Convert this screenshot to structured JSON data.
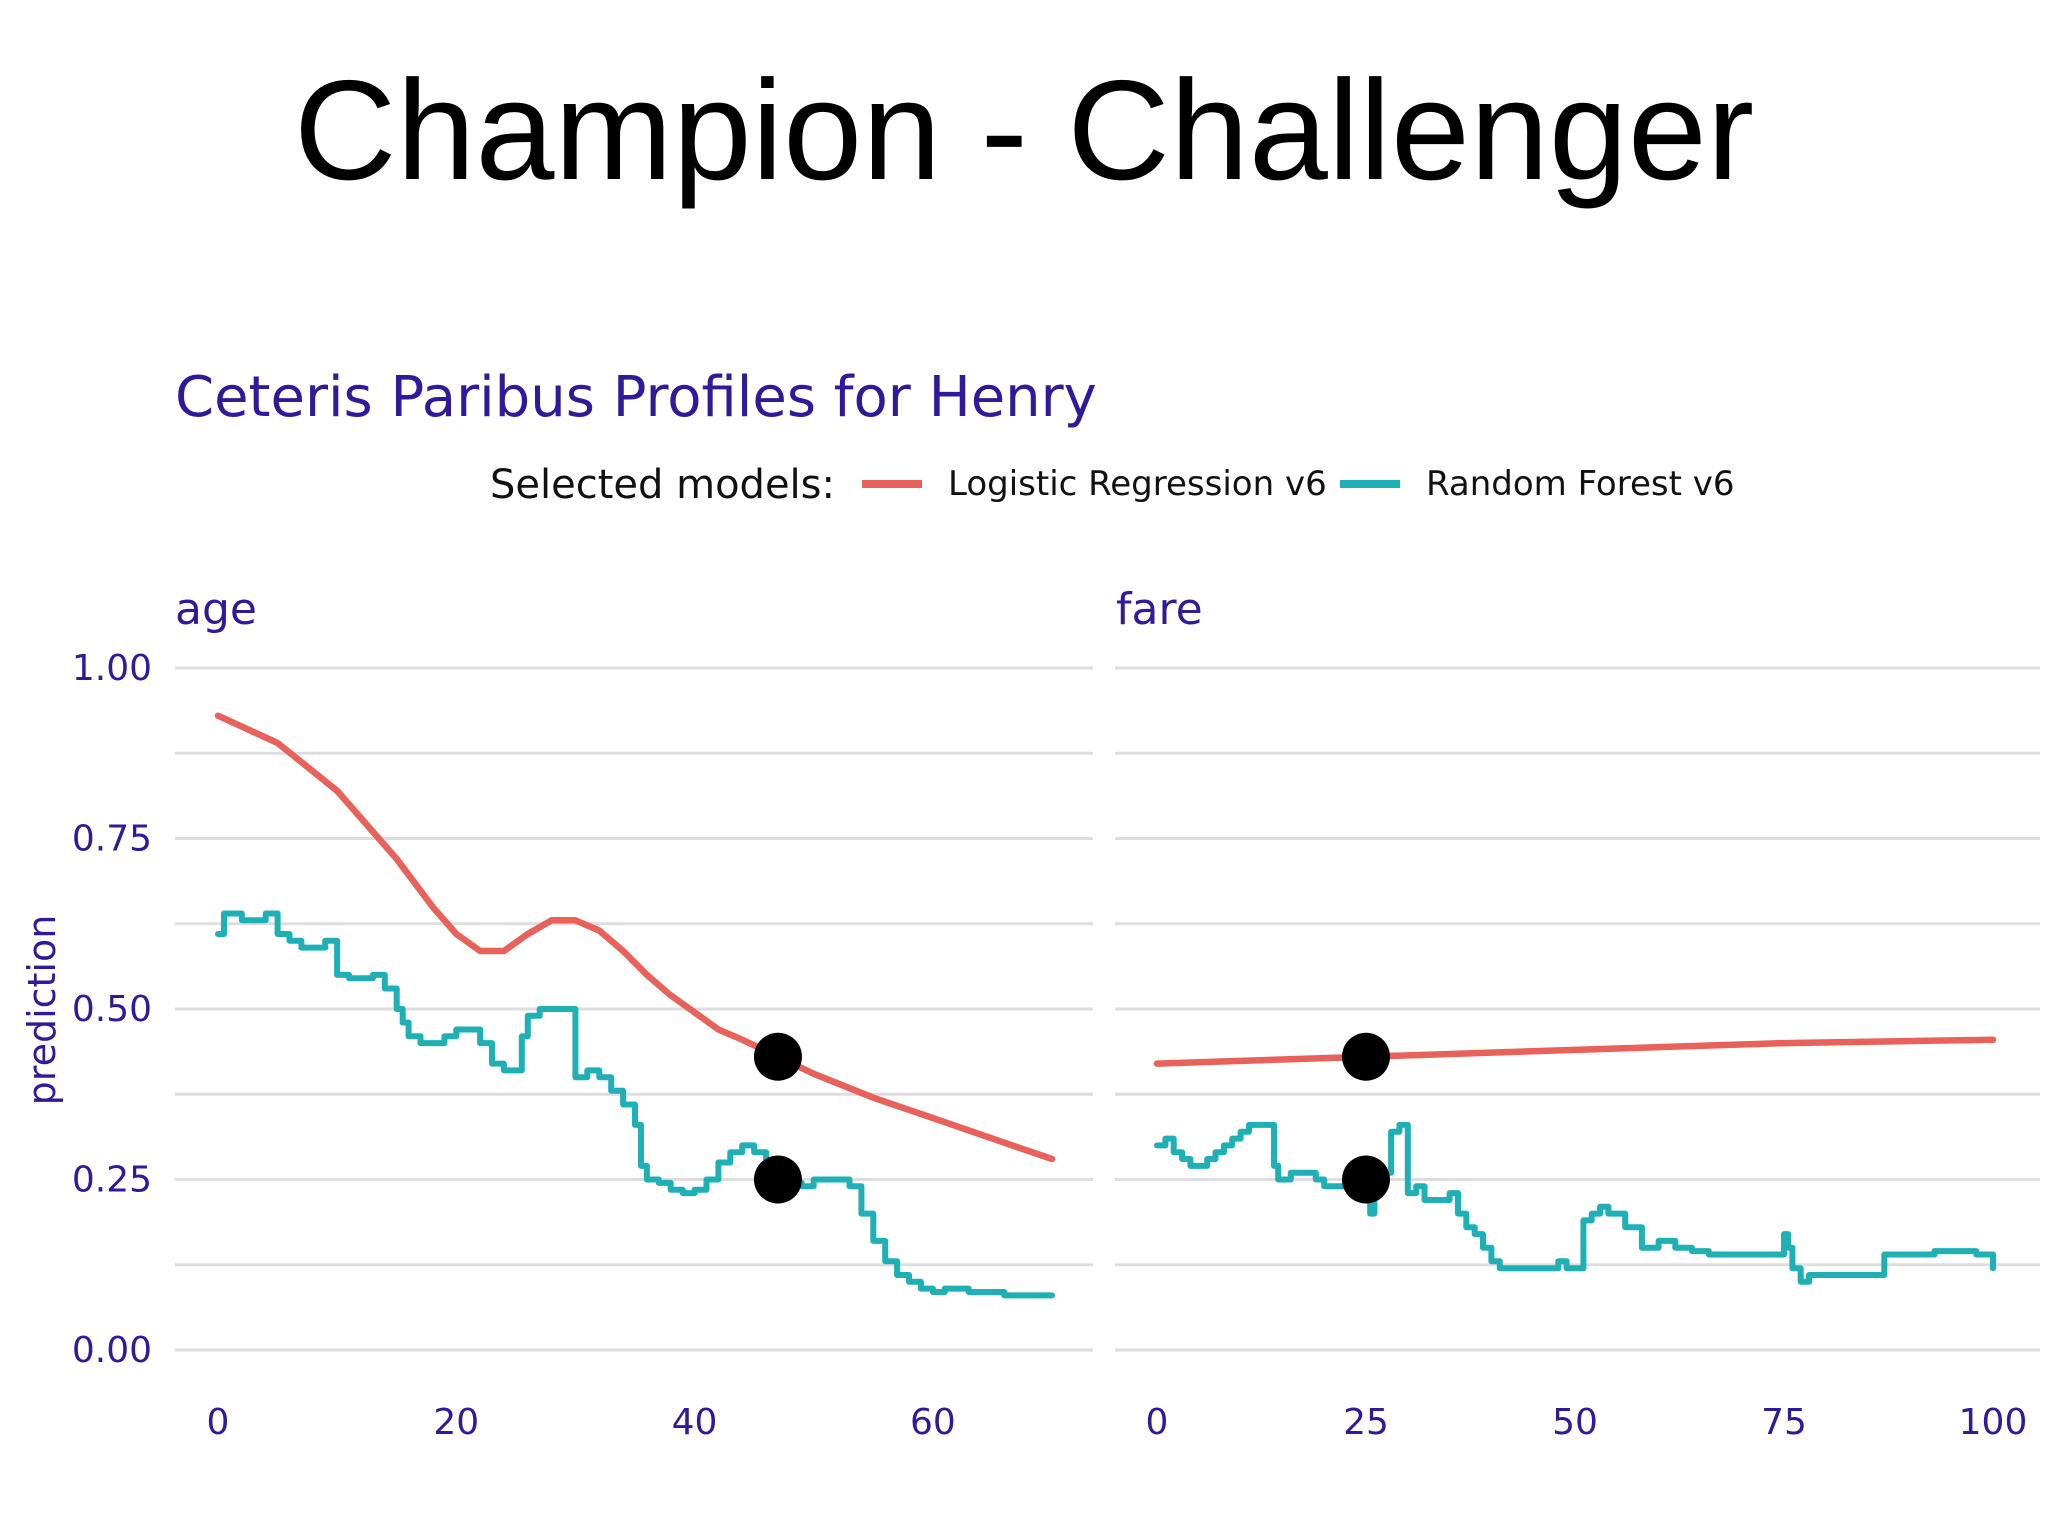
{
  "slide": {
    "title": "Champion - Challenger"
  },
  "chart_data": {
    "type": "line",
    "title": "Ceteris Paribus Profiles for Henry",
    "ylabel": "prediction",
    "ylim": [
      0,
      1
    ],
    "yticks": [
      0,
      0.25,
      0.5,
      0.75,
      1
    ],
    "ytick_labels": [
      "0.00",
      "0.25",
      "0.50",
      "0.75",
      "1.00"
    ],
    "legend": {
      "title": "Selected models:",
      "position": "top",
      "entries": [
        {
          "name": "Logistic Regression v6",
          "color": "#e8615a"
        },
        {
          "name": "Random Forest v6",
          "color": "#1fb0b6"
        }
      ]
    },
    "point_color": "#000000",
    "facets": [
      {
        "label": "age",
        "xlim": [
          0,
          70
        ],
        "xticks": [
          0,
          20,
          40,
          60
        ],
        "observation_x": 47,
        "series": [
          {
            "name": "Logistic Regression v6",
            "color": "#e8615a",
            "x": [
              0,
              5,
              10,
              15,
              18,
              20,
              22,
              24,
              26,
              28,
              30,
              32,
              34,
              36,
              38,
              40,
              42,
              44,
              47,
              50,
              55,
              60,
              65,
              70
            ],
            "y": [
              0.93,
              0.89,
              0.82,
              0.72,
              0.65,
              0.61,
              0.585,
              0.585,
              0.61,
              0.63,
              0.63,
              0.615,
              0.585,
              0.55,
              0.52,
              0.495,
              0.47,
              0.455,
              0.43,
              0.405,
              0.37,
              0.34,
              0.31,
              0.28
            ]
          },
          {
            "name": "Random Forest v6",
            "color": "#1fb0b6",
            "step": true,
            "observation_y": 0.25,
            "x": [
              0,
              0.5,
              2,
              4,
              5,
              6,
              7,
              9,
              10,
              11,
              13,
              14,
              15,
              15.5,
              16,
              17,
              18,
              19,
              20,
              21,
              22,
              23,
              24,
              25,
              25.5,
              26,
              27,
              28,
              29,
              30,
              31,
              32,
              33,
              34,
              35,
              35.5,
              36,
              37,
              38,
              39,
              40,
              41,
              42,
              43,
              44,
              45,
              46,
              47,
              48,
              49,
              50,
              51,
              52,
              53,
              54,
              55,
              56,
              57,
              58,
              59,
              60,
              61,
              62,
              63,
              64,
              65,
              66,
              68,
              70
            ],
            "y": [
              0.61,
              0.64,
              0.63,
              0.64,
              0.61,
              0.6,
              0.59,
              0.6,
              0.55,
              0.545,
              0.55,
              0.53,
              0.5,
              0.48,
              0.46,
              0.45,
              0.45,
              0.46,
              0.47,
              0.47,
              0.45,
              0.42,
              0.41,
              0.41,
              0.46,
              0.49,
              0.5,
              0.5,
              0.5,
              0.4,
              0.41,
              0.4,
              0.38,
              0.36,
              0.33,
              0.27,
              0.25,
              0.245,
              0.235,
              0.23,
              0.235,
              0.25,
              0.275,
              0.29,
              0.3,
              0.29,
              0.27,
              0.245,
              0.245,
              0.24,
              0.25,
              0.25,
              0.25,
              0.24,
              0.2,
              0.16,
              0.13,
              0.11,
              0.1,
              0.09,
              0.085,
              0.09,
              0.09,
              0.085,
              0.085,
              0.085,
              0.08,
              0.08,
              0.08
            ]
          }
        ]
      },
      {
        "label": "fare",
        "xlim": [
          0,
          100
        ],
        "xticks": [
          0,
          25,
          50,
          75,
          100
        ],
        "observation_x": 25,
        "series": [
          {
            "name": "Logistic Regression v6",
            "color": "#e8615a",
            "x": [
              0,
              25,
              50,
              75,
              100
            ],
            "y": [
              0.42,
              0.43,
              0.44,
              0.45,
              0.455
            ]
          },
          {
            "name": "Random Forest v6",
            "color": "#1fb0b6",
            "step": true,
            "observation_y": 0.25,
            "x": [
              0,
              1,
              2,
              3,
              4,
              5,
              6,
              7,
              8,
              9,
              10,
              11,
              12,
              13,
              14,
              14.5,
              15,
              16,
              18,
              19,
              20,
              22,
              23,
              24,
              25,
              25.5,
              26,
              27,
              28,
              29,
              30,
              31,
              32,
              34,
              35,
              36,
              37,
              38,
              39,
              40,
              41,
              42,
              45,
              48,
              49,
              50,
              51,
              52,
              53,
              54,
              55,
              56,
              58,
              60,
              62,
              64,
              66,
              68,
              70,
              73,
              75,
              75.5,
              76,
              77,
              78,
              80,
              83,
              86,
              87,
              90,
              93,
              96,
              98,
              100
            ],
            "y": [
              0.3,
              0.31,
              0.29,
              0.28,
              0.27,
              0.27,
              0.28,
              0.29,
              0.3,
              0.31,
              0.32,
              0.33,
              0.33,
              0.33,
              0.27,
              0.25,
              0.25,
              0.26,
              0.26,
              0.25,
              0.24,
              0.24,
              0.25,
              0.24,
              0.25,
              0.2,
              0.26,
              0.26,
              0.32,
              0.33,
              0.23,
              0.24,
              0.22,
              0.22,
              0.23,
              0.2,
              0.18,
              0.17,
              0.15,
              0.13,
              0.12,
              0.12,
              0.12,
              0.13,
              0.12,
              0.12,
              0.19,
              0.2,
              0.21,
              0.2,
              0.2,
              0.18,
              0.15,
              0.16,
              0.15,
              0.145,
              0.14,
              0.14,
              0.14,
              0.14,
              0.17,
              0.15,
              0.12,
              0.1,
              0.11,
              0.11,
              0.11,
              0.11,
              0.14,
              0.14,
              0.145,
              0.145,
              0.14,
              0.12
            ]
          }
        ]
      }
    ]
  }
}
